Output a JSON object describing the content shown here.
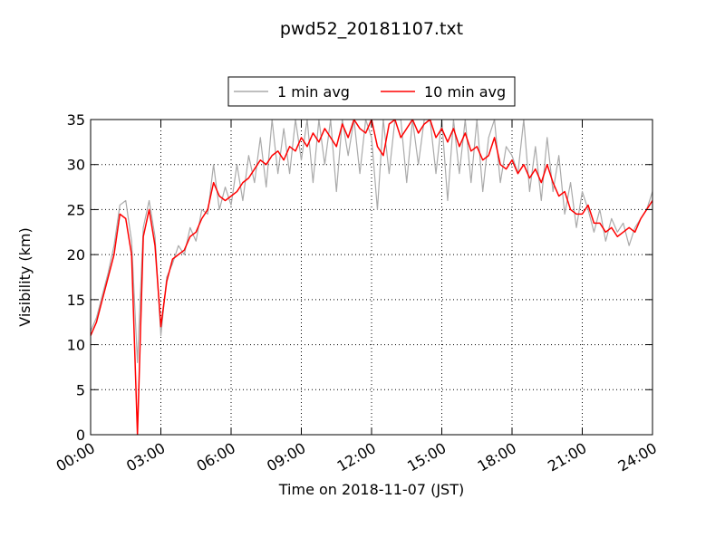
{
  "chart_data": {
    "type": "line",
    "title": "pwd52_20181107.txt",
    "xlabel": "Time on 2018-11-07 (JST)",
    "ylabel": "Visibility (km)",
    "x": [
      0,
      0.25,
      0.5,
      0.75,
      1,
      1.25,
      1.5,
      1.75,
      2,
      2.25,
      2.5,
      2.75,
      3,
      3.25,
      3.5,
      3.75,
      4,
      4.25,
      4.5,
      4.75,
      5,
      5.25,
      5.5,
      5.75,
      6,
      6.25,
      6.5,
      6.75,
      7,
      7.25,
      7.5,
      7.75,
      8,
      8.25,
      8.5,
      8.75,
      9,
      9.25,
      9.5,
      9.75,
      10,
      10.25,
      10.5,
      10.75,
      11,
      11.25,
      11.5,
      11.75,
      12,
      12.25,
      12.5,
      12.75,
      13,
      13.25,
      13.5,
      13.75,
      14,
      14.25,
      14.5,
      14.75,
      15,
      15.25,
      15.5,
      15.75,
      16,
      16.25,
      16.5,
      16.75,
      17,
      17.25,
      17.5,
      17.75,
      18,
      18.25,
      18.5,
      18.75,
      19,
      19.25,
      19.5,
      19.75,
      20,
      20.25,
      20.5,
      20.75,
      21,
      21.25,
      21.5,
      21.75,
      22,
      22.25,
      22.5,
      22.75,
      23,
      23.25,
      23.5,
      23.75,
      24
    ],
    "series": [
      {
        "name": "1 min avg",
        "color": "#aaaaaa",
        "values": [
          11.5,
          13,
          15.5,
          18,
          21,
          25.5,
          26,
          21.5,
          8,
          23,
          26,
          22,
          11,
          17.5,
          19,
          21,
          20,
          23,
          21.5,
          25,
          24.5,
          30,
          25,
          27.5,
          25.5,
          30,
          26,
          31,
          28,
          33,
          27.5,
          35,
          29,
          34,
          29,
          35,
          30.5,
          35,
          28,
          35,
          30,
          35,
          27,
          35,
          31,
          35,
          29,
          35,
          33,
          25,
          35,
          29,
          35,
          35,
          28,
          35,
          30,
          35,
          35,
          29,
          35,
          26,
          35,
          29,
          35,
          28,
          35,
          27,
          33,
          35,
          28,
          32,
          31,
          29,
          35,
          27,
          32,
          26,
          33,
          27,
          31,
          24.5,
          28,
          23,
          27,
          25,
          22.5,
          25,
          21.5,
          24,
          22.5,
          23.5,
          21,
          23,
          24,
          25,
          27
        ]
      },
      {
        "name": "10 min avg",
        "color": "#ff0000",
        "values": [
          11,
          12.5,
          15,
          17.5,
          20,
          24.5,
          24,
          20,
          0,
          22,
          25,
          21,
          12,
          17,
          19.5,
          20,
          20.5,
          22,
          22.5,
          24,
          25,
          28,
          26.5,
          26,
          26.5,
          27,
          28,
          28.5,
          29.5,
          30.5,
          30,
          31,
          31.5,
          30.5,
          32,
          31.5,
          33,
          32,
          33.5,
          32.5,
          34,
          33,
          32,
          34.5,
          33,
          35,
          34,
          33.5,
          35,
          32,
          31,
          34.5,
          35,
          33,
          34,
          35,
          33.5,
          34.5,
          35,
          33,
          34,
          32.5,
          34,
          32,
          33.5,
          31.5,
          32,
          30.5,
          31,
          33,
          30,
          29.5,
          30.5,
          29,
          30,
          28.5,
          29.5,
          28,
          30,
          28,
          26.5,
          27,
          25,
          24.5,
          24.5,
          25.5,
          23.5,
          23.5,
          22.5,
          23,
          22,
          22.5,
          23,
          22.5,
          24,
          25,
          26
        ]
      }
    ],
    "xlim": [
      0,
      24
    ],
    "xticks": [
      {
        "value": 0,
        "label": "00:00"
      },
      {
        "value": 3,
        "label": "03:00"
      },
      {
        "value": 6,
        "label": "06:00"
      },
      {
        "value": 9,
        "label": "09:00"
      },
      {
        "value": 12,
        "label": "12:00"
      },
      {
        "value": 15,
        "label": "15:00"
      },
      {
        "value": 18,
        "label": "18:00"
      },
      {
        "value": 21,
        "label": "21:00"
      },
      {
        "value": 24,
        "label": "24:00"
      }
    ],
    "ylim": [
      0,
      35
    ],
    "yticks": [
      0,
      5,
      10,
      15,
      20,
      25,
      30,
      35
    ],
    "grid": true,
    "legend": "top"
  }
}
